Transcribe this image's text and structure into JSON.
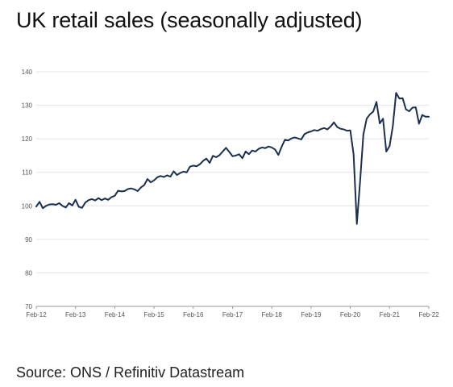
{
  "title": "UK retail sales (seasonally adjusted)",
  "source": "Source: ONS / Refinitiv Datastream",
  "chart_data": {
    "type": "line",
    "title": "UK retail sales (seasonally adjusted)",
    "xlabel": "",
    "ylabel": "",
    "ylim": [
      70,
      140
    ],
    "yticks": [
      70,
      80,
      90,
      100,
      110,
      120,
      130,
      140
    ],
    "xticks": [
      "Feb-12",
      "Feb-13",
      "Feb-14",
      "Feb-15",
      "Feb-16",
      "Feb-17",
      "Feb-18",
      "Feb-19",
      "Feb-20",
      "Feb-21",
      "Feb-22"
    ],
    "grid": "horizontal",
    "legend": "none",
    "color": "#1b2f4e",
    "x": [
      "2012-02",
      "2012-03",
      "2012-04",
      "2012-05",
      "2012-06",
      "2012-07",
      "2012-08",
      "2012-09",
      "2012-10",
      "2012-11",
      "2012-12",
      "2013-01",
      "2013-02",
      "2013-03",
      "2013-04",
      "2013-05",
      "2013-06",
      "2013-07",
      "2013-08",
      "2013-09",
      "2013-10",
      "2013-11",
      "2013-12",
      "2014-01",
      "2014-02",
      "2014-03",
      "2014-04",
      "2014-05",
      "2014-06",
      "2014-07",
      "2014-08",
      "2014-09",
      "2014-10",
      "2014-11",
      "2014-12",
      "2015-01",
      "2015-02",
      "2015-03",
      "2015-04",
      "2015-05",
      "2015-06",
      "2015-07",
      "2015-08",
      "2015-09",
      "2015-10",
      "2015-11",
      "2015-12",
      "2016-01",
      "2016-02",
      "2016-03",
      "2016-04",
      "2016-05",
      "2016-06",
      "2016-07",
      "2016-08",
      "2016-09",
      "2016-10",
      "2016-11",
      "2016-12",
      "2017-01",
      "2017-02",
      "2017-03",
      "2017-04",
      "2017-05",
      "2017-06",
      "2017-07",
      "2017-08",
      "2017-09",
      "2017-10",
      "2017-11",
      "2017-12",
      "2018-01",
      "2018-02",
      "2018-03",
      "2018-04",
      "2018-05",
      "2018-06",
      "2018-07",
      "2018-08",
      "2018-09",
      "2018-10",
      "2018-11",
      "2018-12",
      "2019-01",
      "2019-02",
      "2019-03",
      "2019-04",
      "2019-05",
      "2019-06",
      "2019-07",
      "2019-08",
      "2019-09",
      "2019-10",
      "2019-11",
      "2019-12",
      "2020-01",
      "2020-02",
      "2020-03",
      "2020-04",
      "2020-05",
      "2020-06",
      "2020-07",
      "2020-08",
      "2020-09",
      "2020-10",
      "2020-11",
      "2020-12",
      "2021-01",
      "2021-02",
      "2021-03",
      "2021-04",
      "2021-05",
      "2021-06",
      "2021-07",
      "2021-08",
      "2021-09",
      "2021-10",
      "2021-11",
      "2021-12",
      "2022-01",
      "2022-02"
    ],
    "values": [
      99.8,
      101.2,
      99.3,
      100.0,
      100.4,
      100.5,
      100.3,
      100.8,
      100.0,
      99.5,
      100.8,
      100.1,
      101.8,
      99.7,
      99.4,
      101.0,
      101.7,
      102.0,
      101.6,
      102.3,
      101.7,
      102.2,
      101.8,
      102.6,
      103.0,
      104.5,
      104.3,
      104.4,
      105.0,
      105.2,
      104.9,
      104.4,
      105.5,
      106.2,
      108.0,
      107.0,
      107.6,
      108.5,
      108.9,
      108.6,
      109.1,
      108.7,
      110.3,
      109.2,
      109.8,
      110.2,
      110.0,
      111.7,
      112.0,
      111.8,
      112.4,
      113.4,
      114.1,
      112.8,
      114.9,
      114.5,
      115.1,
      116.2,
      117.3,
      116.1,
      114.8,
      115.0,
      115.4,
      114.2,
      116.2,
      115.4,
      116.5,
      116.2,
      117.0,
      117.4,
      117.2,
      117.7,
      117.4,
      116.8,
      115.2,
      117.6,
      119.7,
      119.5,
      120.1,
      120.4,
      120.1,
      119.8,
      121.4,
      121.9,
      122.2,
      122.6,
      122.4,
      122.9,
      123.2,
      122.8,
      123.7,
      124.9,
      123.5,
      123.0,
      122.8,
      122.4,
      122.5,
      115.4,
      94.6,
      107.4,
      121.3,
      126.0,
      127.3,
      128.1,
      131.0,
      124.6,
      126.0,
      116.2,
      117.8,
      123.8,
      133.7,
      132.0,
      132.1,
      128.8,
      128.2,
      129.3,
      129.4,
      124.5,
      127.1,
      126.6,
      126.6
    ]
  }
}
